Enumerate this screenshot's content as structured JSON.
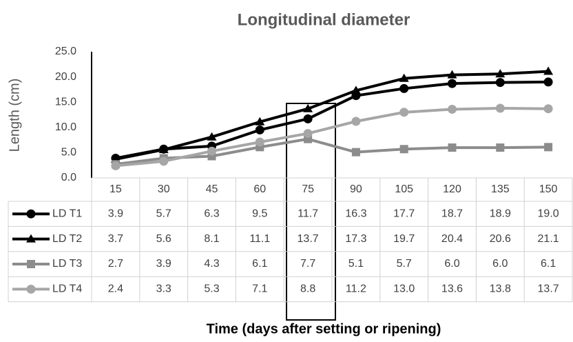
{
  "chart_data": {
    "type": "line",
    "title": "Longitudinal diameter",
    "y_label": "Length (cm)",
    "x_label": "Time (days after setting or ripening)",
    "categories": [
      "15",
      "30",
      "45",
      "60",
      "75",
      "90",
      "105",
      "120",
      "135",
      "150"
    ],
    "ylim": [
      0,
      25
    ],
    "yticks": [
      {
        "value": 0,
        "label": "0.0"
      },
      {
        "value": 5,
        "label": "5.0"
      },
      {
        "value": 10,
        "label": "10.0"
      },
      {
        "value": 15,
        "label": "15.0"
      },
      {
        "value": 20,
        "label": "20.0"
      },
      {
        "value": 25,
        "label": "25.0"
      }
    ],
    "series": [
      {
        "name": "LD T1",
        "color": "#000000",
        "marker": "circle",
        "values": [
          3.9,
          5.7,
          6.3,
          9.5,
          11.7,
          16.3,
          17.7,
          18.7,
          18.9,
          19.0
        ],
        "value_labels": [
          "3.9",
          "5.7",
          "6.3",
          "9.5",
          "11.7",
          "16.3",
          "17.7",
          "18.7",
          "18.9",
          "19.0"
        ]
      },
      {
        "name": "LD T2",
        "color": "#000000",
        "marker": "triangle",
        "values": [
          3.7,
          5.6,
          8.1,
          11.1,
          13.7,
          17.3,
          19.7,
          20.4,
          20.6,
          21.1
        ],
        "value_labels": [
          "3.7",
          "5.6",
          "8.1",
          "11.1",
          "13.7",
          "17.3",
          "19.7",
          "20.4",
          "20.6",
          "21.1"
        ]
      },
      {
        "name": "LD T3",
        "color": "#8c8c8c",
        "marker": "square",
        "values": [
          2.7,
          3.9,
          4.3,
          6.1,
          7.7,
          5.1,
          5.7,
          6.0,
          6.0,
          6.1
        ],
        "value_labels": [
          "2.7",
          "3.9",
          "4.3",
          "6.1",
          "7.7",
          "5.1",
          "5.7",
          "6.0",
          "6.0",
          "6.1"
        ]
      },
      {
        "name": "LD T4",
        "color": "#a6a6a6",
        "marker": "circle",
        "values": [
          2.4,
          3.3,
          5.3,
          7.1,
          8.8,
          11.2,
          13.0,
          13.6,
          13.8,
          13.7
        ],
        "value_labels": [
          "2.4",
          "3.3",
          "5.3",
          "7.1",
          "8.8",
          "11.2",
          "13.0",
          "13.6",
          "13.8",
          "13.7"
        ]
      }
    ]
  }
}
